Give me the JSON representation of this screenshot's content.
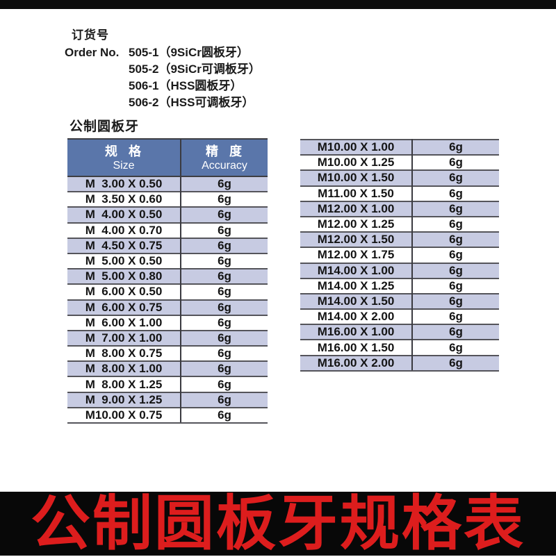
{
  "order_info": {
    "title_cn": "订货号",
    "label_en": "Order No.",
    "items": [
      "505-1（9SiCr圆板牙）",
      "505-2（9SiCr可调板牙）",
      "506-1（HSS圆板牙）",
      "506-2（HSS可调板牙）"
    ]
  },
  "section_label": "公制圆板牙",
  "spec_table": {
    "header": {
      "size_cn": "规  格",
      "size_en": "Size",
      "accuracy_cn": "精  度",
      "accuracy_en": "Accuracy"
    },
    "left_rows": [
      {
        "size": "M  3.00 X 0.50",
        "accuracy": "6g"
      },
      {
        "size": "M  3.50 X 0.60",
        "accuracy": "6g"
      },
      {
        "size": "M  4.00 X 0.50",
        "accuracy": "6g"
      },
      {
        "size": "M  4.00 X 0.70",
        "accuracy": "6g"
      },
      {
        "size": "M  4.50 X 0.75",
        "accuracy": "6g"
      },
      {
        "size": "M  5.00 X 0.50",
        "accuracy": "6g"
      },
      {
        "size": "M  5.00 X 0.80",
        "accuracy": "6g"
      },
      {
        "size": "M  6.00 X 0.50",
        "accuracy": "6g"
      },
      {
        "size": "M  6.00 X 0.75",
        "accuracy": "6g"
      },
      {
        "size": "M  6.00 X 1.00",
        "accuracy": "6g"
      },
      {
        "size": "M  7.00 X 1.00",
        "accuracy": "6g"
      },
      {
        "size": "M  8.00 X 0.75",
        "accuracy": "6g"
      },
      {
        "size": "M  8.00 X 1.00",
        "accuracy": "6g"
      },
      {
        "size": "M  8.00 X 1.25",
        "accuracy": "6g"
      },
      {
        "size": "M  9.00 X 1.25",
        "accuracy": "6g"
      },
      {
        "size": "M10.00 X 0.75",
        "accuracy": "6g"
      }
    ],
    "right_rows": [
      {
        "size": "M10.00 X 1.00",
        "accuracy": "6g"
      },
      {
        "size": "M10.00 X 1.25",
        "accuracy": "6g"
      },
      {
        "size": "M10.00 X 1.50",
        "accuracy": "6g"
      },
      {
        "size": "M11.00 X 1.50",
        "accuracy": "6g"
      },
      {
        "size": "M12.00 X 1.00",
        "accuracy": "6g"
      },
      {
        "size": "M12.00 X 1.25",
        "accuracy": "6g"
      },
      {
        "size": "M12.00 X 1.50",
        "accuracy": "6g"
      },
      {
        "size": "M12.00 X 1.75",
        "accuracy": "6g"
      },
      {
        "size": "M14.00 X 1.00",
        "accuracy": "6g"
      },
      {
        "size": "M14.00 X 1.25",
        "accuracy": "6g"
      },
      {
        "size": "M14.00 X 1.50",
        "accuracy": "6g"
      },
      {
        "size": "M14.00 X 2.00",
        "accuracy": "6g"
      },
      {
        "size": "M16.00 X 1.00",
        "accuracy": "6g"
      },
      {
        "size": "M16.00 X 1.50",
        "accuracy": "6g"
      },
      {
        "size": "M16.00 X 2.00",
        "accuracy": "6g"
      }
    ]
  },
  "banner": {
    "text": "公制圆板牙规格表"
  },
  "colors": {
    "header_bg": "#5a76aa",
    "row_alt_bg": "#c7cbe2",
    "row_bg": "#ffffff",
    "row_border": "#54545a",
    "banner_bg": "#080808",
    "banner_text": "#dd1d1d",
    "top_bar": "#0b0b0b"
  }
}
